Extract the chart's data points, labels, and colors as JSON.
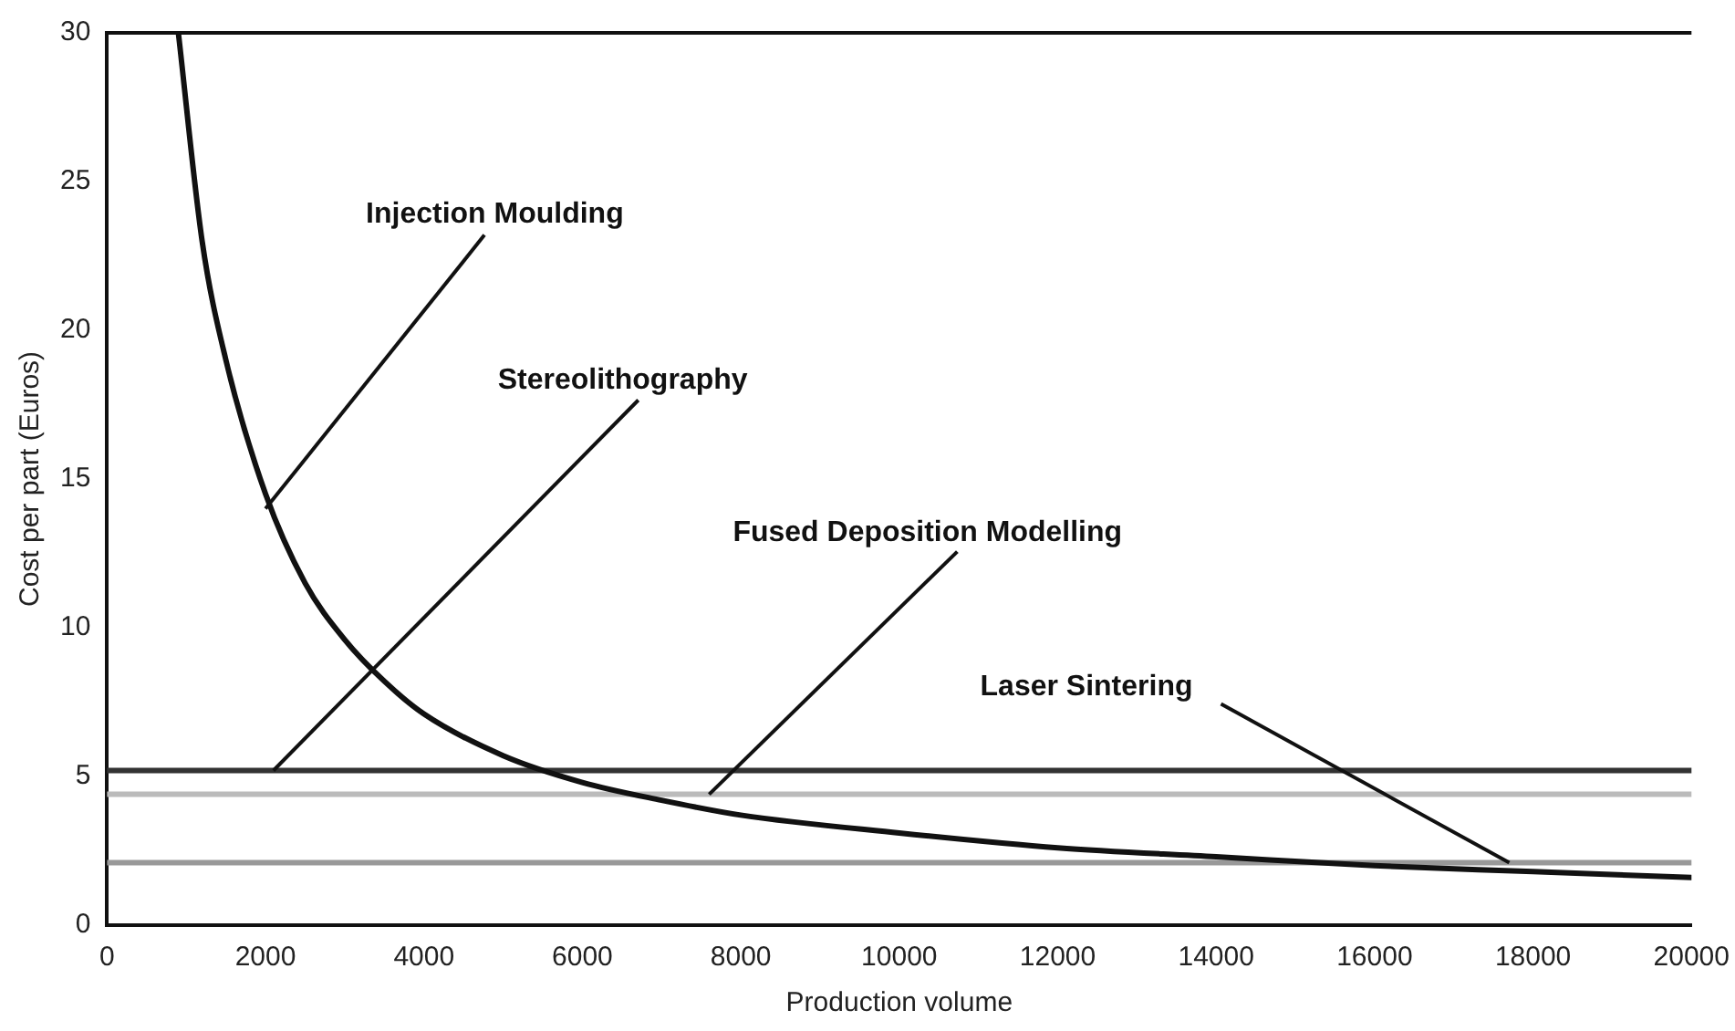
{
  "chart_data": {
    "type": "line",
    "xlabel": "Production volume",
    "ylabel": "Cost per part (Euros)",
    "xlim": [
      0,
      20000
    ],
    "xticks": [
      0,
      2000,
      4000,
      6000,
      8000,
      10000,
      12000,
      14000,
      16000,
      18000,
      20000
    ],
    "ylim": [
      0,
      30
    ],
    "yticks": [
      0,
      5,
      10,
      15,
      20,
      25,
      30
    ],
    "grid": false,
    "legend": false,
    "marker": "none",
    "line_style": "solid",
    "series": [
      {
        "color": "#111111",
        "x": [
          900,
          1200,
          1500,
          2000,
          2500,
          3000,
          3500,
          4000,
          5000,
          6000,
          7000,
          8000,
          10000,
          12000,
          14000,
          16000,
          18000,
          20000
        ],
        "values": [
          30,
          23,
          19,
          14.5,
          11.5,
          9.6,
          8.2,
          7.1,
          5.7,
          4.8,
          4.2,
          3.7,
          3.1,
          2.6,
          2.3,
          2.0,
          1.8,
          1.6
        ]
      },
      {
        "color": "#333333",
        "x": [
          0,
          20000
        ],
        "values": [
          5.2,
          5.2
        ]
      },
      {
        "color": "#bbbbbb",
        "x": [
          0,
          20000
        ],
        "values": [
          4.4,
          4.4
        ]
      },
      {
        "color": "#999999",
        "x": [
          0,
          20000
        ],
        "values": [
          2.1,
          2.1
        ]
      }
    ],
    "annotations": [
      {
        "text": "Injection Moulding",
        "x": 2000,
        "y": 14
      },
      {
        "text": "Stereolithography",
        "x": 2100,
        "y": 5.2
      },
      {
        "text": "Fused Deposition Modelling",
        "x": 7600,
        "y": 4.4
      },
      {
        "text": "Laser Sintering",
        "x": 17700,
        "y": 2.1
      }
    ]
  }
}
